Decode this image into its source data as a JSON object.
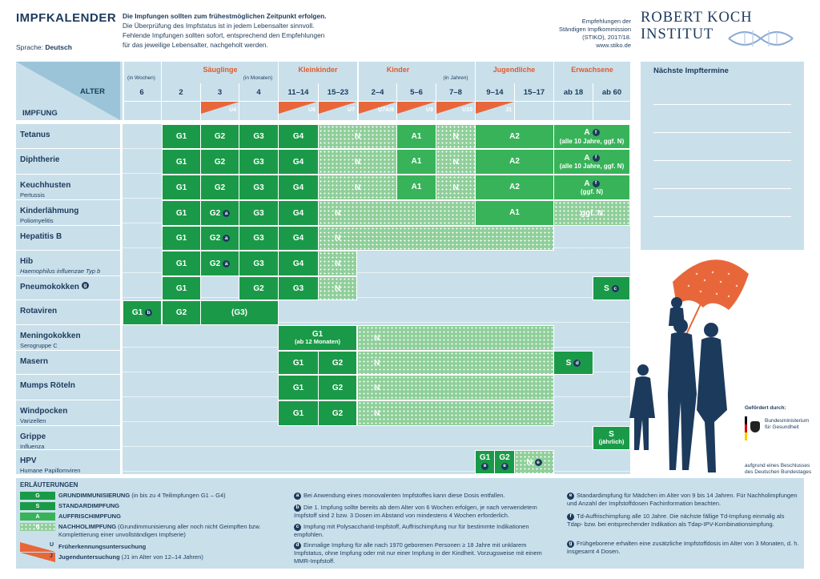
{
  "header": {
    "title": "IMPFKALENDER",
    "language_label": "Sprache:",
    "language": "Deutsch",
    "intro": [
      "Die Impfungen sollten zum frühestmöglichen Zeitpunkt erfolgen.",
      "Die Überprüfung des Impfstatus ist in jedem Lebensalter sinnvoll.",
      "Fehlende Impfungen sollten sofort, entsprechend den Empfehlungen",
      "für das jeweilige Lebensalter, nachgeholt werden."
    ],
    "stiko": [
      "Empfehlungen der",
      "Ständigen Impfkommission",
      "(STIKO), 2017/18.",
      "www.stiko.de"
    ],
    "org": "ROBERT KOCH INSTITUT"
  },
  "table_head": {
    "alter": "ALTER",
    "impfung": "IMPFUNG",
    "groups": {
      "saeuglinge": "Säuglinge",
      "kleinkinder": "Kleinkinder",
      "kinder": "Kinder",
      "jugendliche": "Jugendliche",
      "erwachsene": "Erwachsene"
    },
    "units": {
      "wochen": "(in Wochen)",
      "monaten": "(in Monaten)",
      "jahren": "(in Jahren)"
    },
    "ages": [
      "6",
      "2",
      "3",
      "4",
      "11–14",
      "15–23",
      "2–4",
      "5–6",
      "7–8",
      "9–14",
      "15–17",
      "ab 18",
      "ab 60"
    ],
    "u_tags": [
      "U4",
      "U6",
      "U7",
      "U7A/8",
      "U9",
      "U10",
      "J1"
    ]
  },
  "next_dates_title": "Nächste Impftermine",
  "vaccines": [
    {
      "name": "Tetanus",
      "sub": ""
    },
    {
      "name": "Diphtherie",
      "sub": ""
    },
    {
      "name": "Keuchhusten",
      "sub": "Pertussis"
    },
    {
      "name": "Kinderlähmung",
      "sub": "Poliomyelitis"
    },
    {
      "name": "Hepatitis B",
      "sub": ""
    },
    {
      "name": "Hib",
      "sub": "Haemophilus influenzae Typ b"
    },
    {
      "name": "Pneumokokken",
      "sub": ""
    },
    {
      "name": "Rotaviren",
      "sub": ""
    },
    {
      "name": "Meningokokken",
      "sub": "Serogruppe C"
    },
    {
      "name": "Masern",
      "sub": ""
    },
    {
      "name": "Mumps Röteln",
      "sub": ""
    },
    {
      "name": "Windpocken",
      "sub": "Varizellen"
    },
    {
      "name": "Grippe",
      "sub": "Influenza"
    },
    {
      "name": "HPV",
      "sub": "Humane Papillomviren"
    }
  ],
  "cells": {
    "G1": "G1",
    "G2": "G2",
    "G3": "G3",
    "G4": "G4",
    "G3p": "(G3)",
    "N": "N",
    "A": "A",
    "A1": "A1",
    "A2": "A2",
    "S": "S",
    "every10": "(alle 10 Jahre, ggf. N)",
    "ggfN_paren": "(ggf. N)",
    "ggfN": "ggf. N",
    "ab12": "(ab 12 Monaten)",
    "jaehrlich": "(jährlich)"
  },
  "footnote_marks": {
    "a": "a",
    "b": "b",
    "c": "c",
    "d": "d",
    "e": "e",
    "f": "f",
    "g": "g"
  },
  "legend": {
    "title": "ERLÄUTERUNGEN",
    "g": {
      "box": "G",
      "text_bold": "GRUNDIMMUNISIERUNG",
      "text": " (in bis zu 4 Teilimpfungen G1 – G4)"
    },
    "s": {
      "box": "S",
      "text_bold": "STANDARDIMPFUNG"
    },
    "a": {
      "box": "A",
      "text_bold": "AUFFRISCHIMPFUNG"
    },
    "n": {
      "box": "N",
      "text_bold": "NACHHOLIMPFUNG",
      "text": " (Grundimmunisierung aller noch nicht Geimpften bzw. Komplettierung einer unvollständigen Impfserie)"
    },
    "u": {
      "box": "U",
      "text_bold": "Früherkennungsuntersuchung"
    },
    "j": {
      "box": "J",
      "text_bold": "Jugenduntersuchung",
      "text": " (J1 im Alter von 12–14 Jahren)"
    }
  },
  "notes": [
    {
      "mark": "a",
      "text": "Bei Anwendung eines monovalenten Impfstoffes kann diese Dosis entfallen."
    },
    {
      "mark": "b",
      "text": "Die 1. Impfung sollte bereits ab dem Alter von 6 Wochen erfolgen, je nach verwendetem Impfstoff sind 2 bzw. 3 Dosen im Abstand von mindestens 4 Wochen erforderlich."
    },
    {
      "mark": "c",
      "text": "Impfung mit Polysaccharid-Impfstoff, Auffrischimpfung nur für bestimmte Indikationen empfohlen."
    },
    {
      "mark": "d",
      "text": "Einmalige Impfung für alle nach 1970 geborenen Personen ≥ 18 Jahre mit unklarem Impfstatus, ohne Impfung oder mit nur einer Impfung in der Kindheit. Vorzugsweise mit einem MMR-Impfstoff."
    },
    {
      "mark": "e",
      "text": "Standardimpfung für Mädchen im Alter von 9 bis 14 Jahren. Für Nachholimpfungen und Anzahl der Impfstoffdosen Fachinformation beachten."
    },
    {
      "mark": "f",
      "text": "Td-Auffrischimpfung alle 10 Jahre. Die nächste fällige Td-Impfung einmalig als Tdap- bzw. bei entsprechender Indikation als Tdap-IPV-Kombinationsimpfung."
    },
    {
      "mark": "g",
      "text": "Frühgeborene erhalten eine zusätzliche Impfstoffdosis im Alter von 3 Monaten, d. h. insgesamt 4 Dosen."
    }
  ],
  "sponsor": {
    "label": "Gefördert durch:",
    "ministry": [
      "Bundesministerium",
      "für Gesundheit"
    ],
    "decision": [
      "aufgrund eines Beschlusses",
      "des Deutschen Bundestages"
    ]
  },
  "colors": {
    "g": "#1a9a48",
    "a": "#38b35a",
    "n": "#8fcf9a",
    "bg": "#c9e0eb",
    "orange": "#e8673a",
    "navy": "#1c3a5c"
  }
}
